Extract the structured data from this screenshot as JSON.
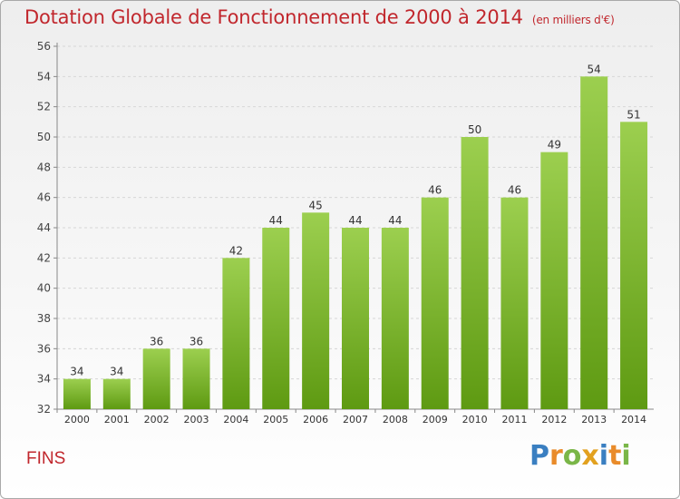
{
  "title": "Dotation Globale de Fonctionnement de 2000 à 2014",
  "unit": "(en milliers d'€)",
  "commune": "FINS",
  "logo": {
    "text": "Proxiti",
    "letters": [
      {
        "ch": "P",
        "color": "#3a7fc1"
      },
      {
        "ch": "r",
        "color": "#e98b2a"
      },
      {
        "ch": "o",
        "color": "#7ab648"
      },
      {
        "ch": "x",
        "color": "#e2a11f"
      },
      {
        "ch": "i",
        "color": "#3a7fc1"
      },
      {
        "ch": "t",
        "color": "#e98b2a"
      },
      {
        "ch": "i",
        "color": "#7ab648"
      }
    ]
  },
  "colors": {
    "bar_top": "#9ccf4f",
    "bar_bottom": "#5e9a12",
    "title": "#c1272d"
  },
  "chart_data": {
    "type": "bar",
    "title": "Dotation Globale de Fonctionnement de 2000 à 2014",
    "categories": [
      "2000",
      "2001",
      "2002",
      "2003",
      "2004",
      "2005",
      "2006",
      "2007",
      "2008",
      "2009",
      "2010",
      "2011",
      "2012",
      "2013",
      "2014"
    ],
    "values": [
      34,
      34,
      36,
      36,
      42,
      44,
      45,
      44,
      44,
      46,
      50,
      46,
      49,
      54,
      51
    ],
    "ylim": [
      32,
      56
    ],
    "yticks": [
      32,
      34,
      36,
      38,
      40,
      42,
      44,
      46,
      48,
      50,
      52,
      54,
      56
    ],
    "grid": true,
    "data_labels": true
  }
}
